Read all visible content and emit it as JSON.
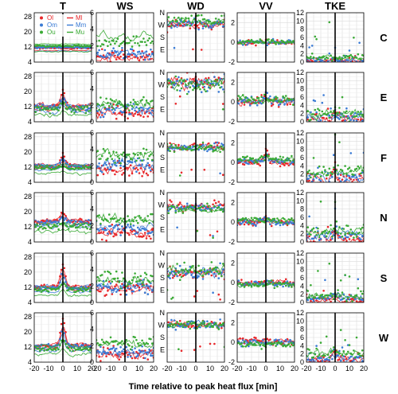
{
  "figure": {
    "xlabel": "Time relative to peak heat flux [min]",
    "columns": [
      "T",
      "WS",
      "WD",
      "VV",
      "TKE"
    ],
    "rows": [
      "C",
      "E",
      "F",
      "N",
      "S",
      "W"
    ]
  },
  "chart_data": {
    "type": "small-multiples",
    "layout": "6 rows x 5 columns",
    "x": {
      "label": "Time relative to peak heat flux [min]",
      "range": [
        -20,
        20
      ],
      "ticks": [
        -20,
        -10,
        0,
        10,
        20
      ],
      "tick_labels": [
        "-20",
        "-10",
        "0",
        "10",
        "20"
      ]
    },
    "vertical_marker_at_x": 0,
    "grid": true,
    "colors": {
      "Ol": "#e8272a",
      "Ml": "#e8272a",
      "Om": "#3a7bd5",
      "Mm": "#3a7bd5",
      "Ou": "#3aaa35",
      "Mu": "#3aaa35"
    },
    "legend": {
      "placement": "inside top of T-C panel",
      "entries": [
        {
          "label": "Ol",
          "marker": "dot",
          "color": "#e8272a"
        },
        {
          "label": "Ml",
          "marker": "line",
          "color": "#e8272a"
        },
        {
          "label": "Om",
          "marker": "dot",
          "color": "#3a7bd5"
        },
        {
          "label": "Mm",
          "marker": "line",
          "color": "#3a7bd5"
        },
        {
          "label": "Ou",
          "marker": "dot",
          "color": "#3aaa35"
        },
        {
          "label": "Mu",
          "marker": "line",
          "color": "#3aaa35"
        }
      ]
    },
    "y_axes": {
      "T": {
        "range": [
          4,
          30
        ],
        "ticks": [
          4,
          12,
          20,
          28
        ],
        "tick_labels": [
          "4",
          "12",
          "20",
          "28"
        ]
      },
      "WS": {
        "range": [
          0,
          6
        ],
        "ticks": [
          0,
          2,
          4,
          6
        ],
        "tick_labels": [
          "0",
          "2",
          "4",
          "6"
        ]
      },
      "WD": {
        "range": [
          0,
          360
        ],
        "ticks": [
          0,
          90,
          180,
          270,
          360
        ],
        "tick_labels": [
          "E",
          "S",
          "W",
          "N"
        ],
        "tick_label_values": [
          90,
          180,
          270,
          360
        ]
      },
      "VV": {
        "range": [
          -2,
          3
        ],
        "ticks": [
          -2,
          -1,
          0,
          1,
          2,
          3
        ],
        "tick_labels": [
          "-2",
          "",
          "0",
          "",
          "2",
          ""
        ]
      },
      "TKE": {
        "range": [
          0,
          12
        ],
        "ticks": [
          0,
          2,
          4,
          6,
          8,
          10,
          12
        ],
        "tick_labels": [
          "0",
          "2",
          "4",
          "6",
          "8",
          "10",
          "12"
        ]
      }
    },
    "panel_profiles": {
      "C": {
        "T": {
          "Ol": 11.5,
          "Om": 11.8,
          "Ou": 12.5,
          "Ml": 11.3,
          "Mm": 11.8,
          "Mu": 12.3,
          "noise": 0.4,
          "peak": 0,
          "lines_offset": [
            -1.5,
            0,
            1.8
          ]
        },
        "WS": {
          "Ol": 0.8,
          "Om": 1.0,
          "Ou": 2.5,
          "Ml": 0.6,
          "Mm": 1.0,
          "Mu": 3.2,
          "noise": 0.6,
          "peak": 0
        },
        "WD": {
          "Ol": 270,
          "Om": 280,
          "Ou": 300,
          "noise": 35,
          "peak": 0
        },
        "VV": {
          "Ol": 0,
          "Om": 0,
          "Ou": 0.05,
          "noise": 0.2,
          "peak": 0
        },
        "TKE": {
          "Ol": 0.2,
          "Om": 0.3,
          "Ou": 1.2,
          "noise": 0.8,
          "peak": 0
        }
      },
      "E": {
        "T": {
          "Ol": 12,
          "Om": 11.5,
          "Ou": 10.5,
          "noise": 1.5,
          "peak": 9
        },
        "WS": {
          "Ol": 1.2,
          "Om": 1.5,
          "Ou": 2.2,
          "noise": 0.7,
          "peak": 0
        },
        "WD": {
          "Ol": 290,
          "Om": 280,
          "Ou": 270,
          "noise": 50,
          "peak": 0
        },
        "VV": {
          "Ol": 0,
          "Om": 0.1,
          "Ou": 0.2,
          "noise": 0.4,
          "peak": 1.0
        },
        "TKE": {
          "Ol": 0.5,
          "Om": 1.0,
          "Ou": 2.0,
          "noise": 1.5,
          "peak": 2
        }
      },
      "F": {
        "T": {
          "Ol": 12.5,
          "Om": 12.5,
          "Ou": 11.5,
          "noise": 0.8,
          "peak": 6
        },
        "WS": {
          "Ol": 1.5,
          "Om": 2.2,
          "Ou": 3.2,
          "noise": 0.8,
          "peak": 0
        },
        "WD": {
          "Ol": 260,
          "Om": 255,
          "Ou": 250,
          "noise": 25,
          "peak": 0
        },
        "VV": {
          "Ol": 0,
          "Om": 0.1,
          "Ou": 0.3,
          "noise": 0.3,
          "peak": 1.2
        },
        "TKE": {
          "Ol": 0.5,
          "Om": 1.2,
          "Ou": 2.5,
          "noise": 1.5,
          "peak": 3
        }
      },
      "N": {
        "T": {
          "Ol": 15,
          "Om": 14,
          "Ou": 12,
          "noise": 1.2,
          "peak": 5
        },
        "WS": {
          "Ol": 1.2,
          "Om": 1.6,
          "Ou": 2.8,
          "noise": 0.7,
          "peak": 0
        },
        "WD": {
          "Ol": 260,
          "Om": 250,
          "Ou": 240,
          "noise": 30,
          "peak": 0
        },
        "VV": {
          "Ol": 0,
          "Om": 0,
          "Ou": 0.2,
          "noise": 0.3,
          "peak": 0.4
        },
        "TKE": {
          "Ol": 0.6,
          "Om": 1.2,
          "Ou": 2.5,
          "noise": 1.5,
          "peak": 3
        }
      },
      "S": {
        "T": {
          "Ol": 12,
          "Om": 11.5,
          "Ou": 10.5,
          "noise": 1.0,
          "peak": 12
        },
        "WS": {
          "Ol": 1.8,
          "Om": 2.0,
          "Ou": 2.8,
          "noise": 0.8,
          "peak": 0
        },
        "WD": {
          "Ol": 220,
          "Om": 220,
          "Ou": 230,
          "noise": 45,
          "peak": 0
        },
        "VV": {
          "Ol": 0,
          "Om": -0.1,
          "Ou": -0.2,
          "noise": 0.3,
          "peak": 0
        },
        "TKE": {
          "Ol": 0.5,
          "Om": 1.0,
          "Ou": 1.6,
          "noise": 1.0,
          "peak": 1
        }
      },
      "W": {
        "T": {
          "Ol": 12.5,
          "Om": 12,
          "Ou": 11,
          "noise": 1.2,
          "peak": 14
        },
        "WS": {
          "Ol": 1.0,
          "Om": 1.2,
          "Ou": 2.4,
          "noise": 0.7,
          "peak": 0
        },
        "WD": {
          "Ol": 280,
          "Om": 270,
          "Ou": 265,
          "noise": 30,
          "peak": 0
        },
        "VV": {
          "Ol": 0.1,
          "Om": 0,
          "Ou": -0.2,
          "noise": 0.3,
          "peak": 0
        },
        "TKE": {
          "Ol": 0.4,
          "Om": 1.0,
          "Ou": 2.0,
          "noise": 1.2,
          "peak": 2
        }
      }
    }
  }
}
